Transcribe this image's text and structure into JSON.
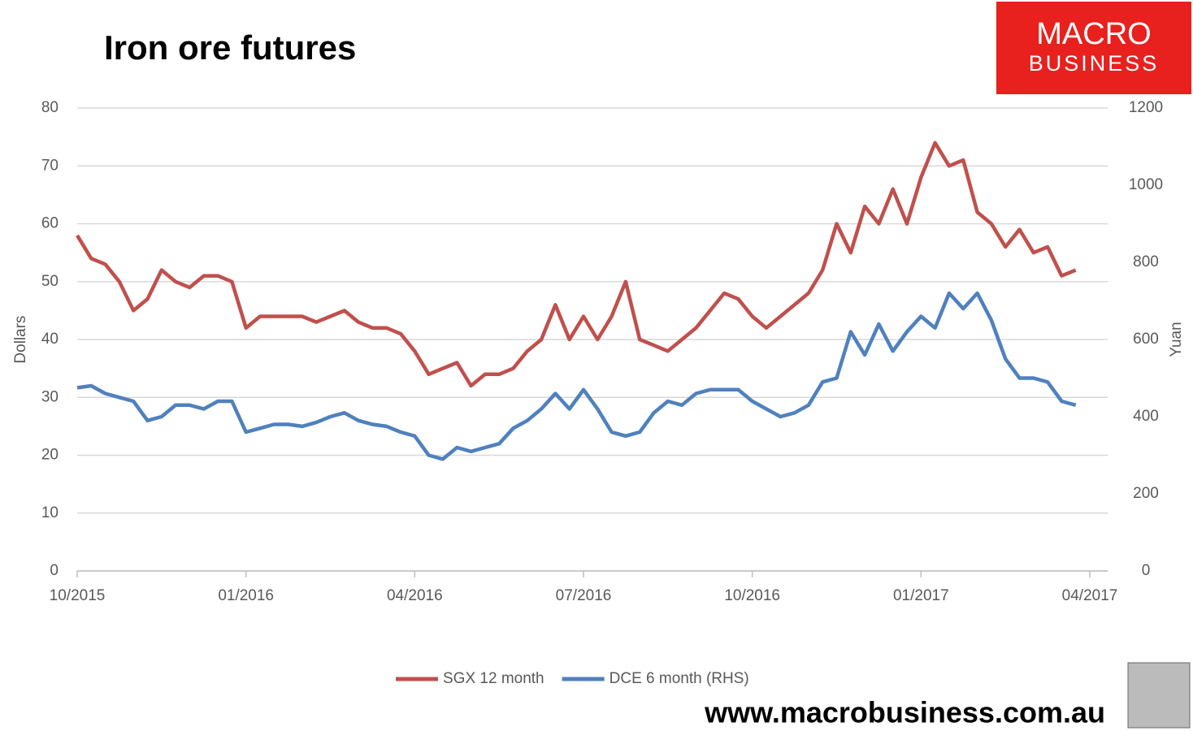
{
  "chart_data": {
    "type": "line",
    "title": "Iron ore futures",
    "y_label": "Dollars",
    "y2_label": "Yuan",
    "logo": [
      "MACRO",
      "BUSINESS"
    ],
    "website": "www.macrobusiness.com.au",
    "categories": [
      "10/2015",
      null,
      null,
      null,
      null,
      null,
      null,
      null,
      null,
      null,
      null,
      null,
      "01/2016",
      null,
      null,
      null,
      null,
      null,
      null,
      null,
      null,
      null,
      null,
      null,
      "04/2016",
      null,
      null,
      null,
      null,
      null,
      null,
      null,
      null,
      null,
      null,
      null,
      "07/2016",
      null,
      null,
      null,
      null,
      null,
      null,
      null,
      null,
      null,
      null,
      null,
      "10/2016",
      null,
      null,
      null,
      null,
      null,
      null,
      null,
      null,
      null,
      null,
      null,
      "01/2017",
      null,
      null,
      null,
      null,
      null,
      null,
      null,
      null,
      null,
      null,
      null,
      "04/2017"
    ],
    "series": [
      {
        "name": "SGX 12 month",
        "color": "#c0504d",
        "values": [
          58,
          54,
          53,
          50,
          45,
          47,
          52,
          50,
          49,
          51,
          51,
          50,
          42,
          44,
          44,
          44,
          44,
          43,
          44,
          45,
          43,
          42,
          42,
          41,
          38,
          34,
          35,
          36,
          32,
          34,
          34,
          35,
          38,
          40,
          46,
          40,
          44,
          40,
          44,
          50,
          40,
          39,
          38,
          40,
          42,
          45,
          48,
          47,
          44,
          42,
          44,
          46,
          48,
          52,
          60,
          55,
          63,
          60,
          66,
          60,
          68,
          74,
          70,
          71,
          62,
          60,
          56,
          59,
          55,
          56,
          51,
          52,
          null
        ]
      },
      {
        "name": "DCE 6 month (RHS)",
        "color": "#4f81bd",
        "axis": "y2",
        "values": [
          475,
          480,
          460,
          450,
          440,
          390,
          400,
          430,
          430,
          420,
          440,
          440,
          360,
          370,
          380,
          380,
          375,
          385,
          400,
          410,
          390,
          380,
          375,
          360,
          350,
          300,
          290,
          320,
          310,
          320,
          330,
          370,
          390,
          420,
          460,
          420,
          470,
          420,
          360,
          350,
          360,
          410,
          440,
          430,
          460,
          470,
          470,
          470,
          440,
          420,
          400,
          410,
          430,
          490,
          500,
          620,
          560,
          640,
          570,
          620,
          660,
          630,
          720,
          680,
          720,
          650,
          550,
          500,
          500,
          490,
          440,
          430,
          null
        ]
      }
    ],
    "ylim": [
      0,
      80
    ],
    "yticks": [
      0,
      10,
      20,
      30,
      40,
      50,
      60,
      70,
      80
    ],
    "y2lim": [
      0,
      1200
    ],
    "y2ticks": [
      0,
      200,
      400,
      600,
      800,
      1000,
      1200
    ],
    "grid": true,
    "legend": "bottom"
  }
}
